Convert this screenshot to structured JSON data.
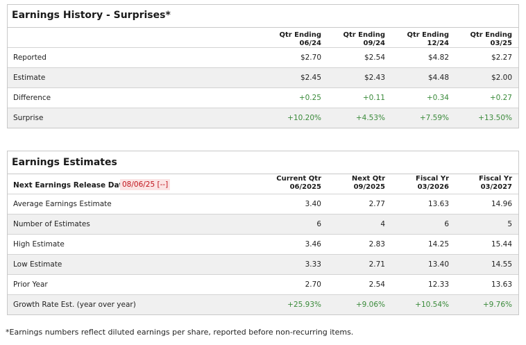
{
  "history": {
    "title": "Earnings History - Surprises*",
    "columns": [
      {
        "line1": "Qtr Ending",
        "line2": "06/24"
      },
      {
        "line1": "Qtr Ending",
        "line2": "09/24"
      },
      {
        "line1": "Qtr Ending",
        "line2": "12/24"
      },
      {
        "line1": "Qtr Ending",
        "line2": "03/25"
      }
    ],
    "rows": [
      {
        "label": "Reported",
        "values": [
          "$2.70",
          "$2.54",
          "$4.82",
          "$2.27"
        ]
      },
      {
        "label": "Estimate",
        "values": [
          "$2.45",
          "$2.43",
          "$4.48",
          "$2.00"
        ]
      },
      {
        "label": "Difference",
        "values": [
          "+0.25",
          "+0.11",
          "+0.34",
          "+0.27"
        ]
      },
      {
        "label": "Surprise",
        "values": [
          "+10.20%",
          "+4.53%",
          "+7.59%",
          "+13.50%"
        ]
      }
    ]
  },
  "estimates": {
    "title": "Earnings Estimates",
    "next_release_label": "Next Earnings Release Date -",
    "next_release_date": "08/06/25 [--]",
    "columns": [
      {
        "line1": "Current Qtr",
        "line2": "06/2025"
      },
      {
        "line1": "Next Qtr",
        "line2": "09/2025"
      },
      {
        "line1": "Fiscal Yr",
        "line2": "03/2026"
      },
      {
        "line1": "Fiscal Yr",
        "line2": "03/2027"
      }
    ],
    "rows": [
      {
        "label": "Average Earnings Estimate",
        "values": [
          "3.40",
          "2.77",
          "13.63",
          "14.96"
        ]
      },
      {
        "label": "Number of Estimates",
        "values": [
          "6",
          "4",
          "6",
          "5"
        ]
      },
      {
        "label": "High Estimate",
        "values": [
          "3.46",
          "2.83",
          "14.25",
          "15.44"
        ]
      },
      {
        "label": "Low Estimate",
        "values": [
          "3.33",
          "2.71",
          "13.40",
          "14.55"
        ]
      },
      {
        "label": "Prior Year",
        "values": [
          "2.70",
          "2.54",
          "12.33",
          "13.63"
        ]
      },
      {
        "label": "Growth Rate Est. (year over year)",
        "values": [
          "+25.93%",
          "+9.06%",
          "+10.54%",
          "+9.76%"
        ]
      }
    ]
  },
  "footnote": "*Earnings numbers reflect diluted earnings per share, reported before non-recurring items.",
  "colors": {
    "positive": "#3a8a3a",
    "release_date": "#c0141c",
    "release_date_bg": "#fbe4e4"
  }
}
